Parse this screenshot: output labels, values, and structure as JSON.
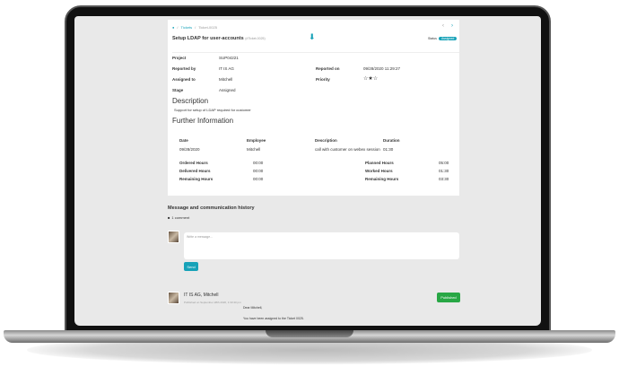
{
  "breadcrumb": {
    "home_icon": "home-icon",
    "items": [
      "Tickets",
      "Ticket-0025"
    ]
  },
  "ticket": {
    "title": "Setup LDAP for user-accounts",
    "ref": "(#Ticket-0025)",
    "status_label": "Status",
    "status": "Assigned"
  },
  "fields": {
    "project_label": "Project",
    "project": "SUP04221",
    "reported_by_label": "Reported by",
    "reported_by": "IT IS AG",
    "assigned_label": "Assigned to",
    "assigned": "Mitchell",
    "stage_label": "Stage",
    "stage": "Assigned",
    "reported_on_label": "Reported on",
    "reported_on": "09/28/2020 11:29:27",
    "priority_label": "Priority",
    "priority": 2,
    "priority_max": 3
  },
  "description": {
    "heading": "Description",
    "text": "Support for setup of LDAP required for customer"
  },
  "further": {
    "heading": "Further Information",
    "columns": [
      "Date",
      "Employee",
      "Description",
      "Duration"
    ],
    "row": [
      "09/28/2020",
      "Mitchell",
      "call with customer on webex session",
      "01:30"
    ],
    "left": [
      {
        "label": "Ordered Hours",
        "value": "00:00"
      },
      {
        "label": "Delivered Hours",
        "value": "00:00"
      },
      {
        "label": "Remaining Hours",
        "value": "00:00"
      }
    ],
    "right": [
      {
        "label": "Planned Hours",
        "value": "05:00"
      },
      {
        "label": "Worked Hours",
        "value": "01:30"
      },
      {
        "label": "Remaining Hours",
        "value": "03:30"
      }
    ]
  },
  "messages": {
    "heading": "Message and communication history",
    "count": "1 comment",
    "placeholder": "Write a message...",
    "send": "Send",
    "item": {
      "author": "IT IS AG, Mitchell",
      "meta": "Published on September 28th 2020, 1:33:40 pm",
      "status": "Published",
      "line1": "Dear Mitchell,",
      "line2": "You have been assigned to the Ticket 0025."
    }
  },
  "colors": {
    "accent": "#17a2b8",
    "published": "#28a745"
  }
}
